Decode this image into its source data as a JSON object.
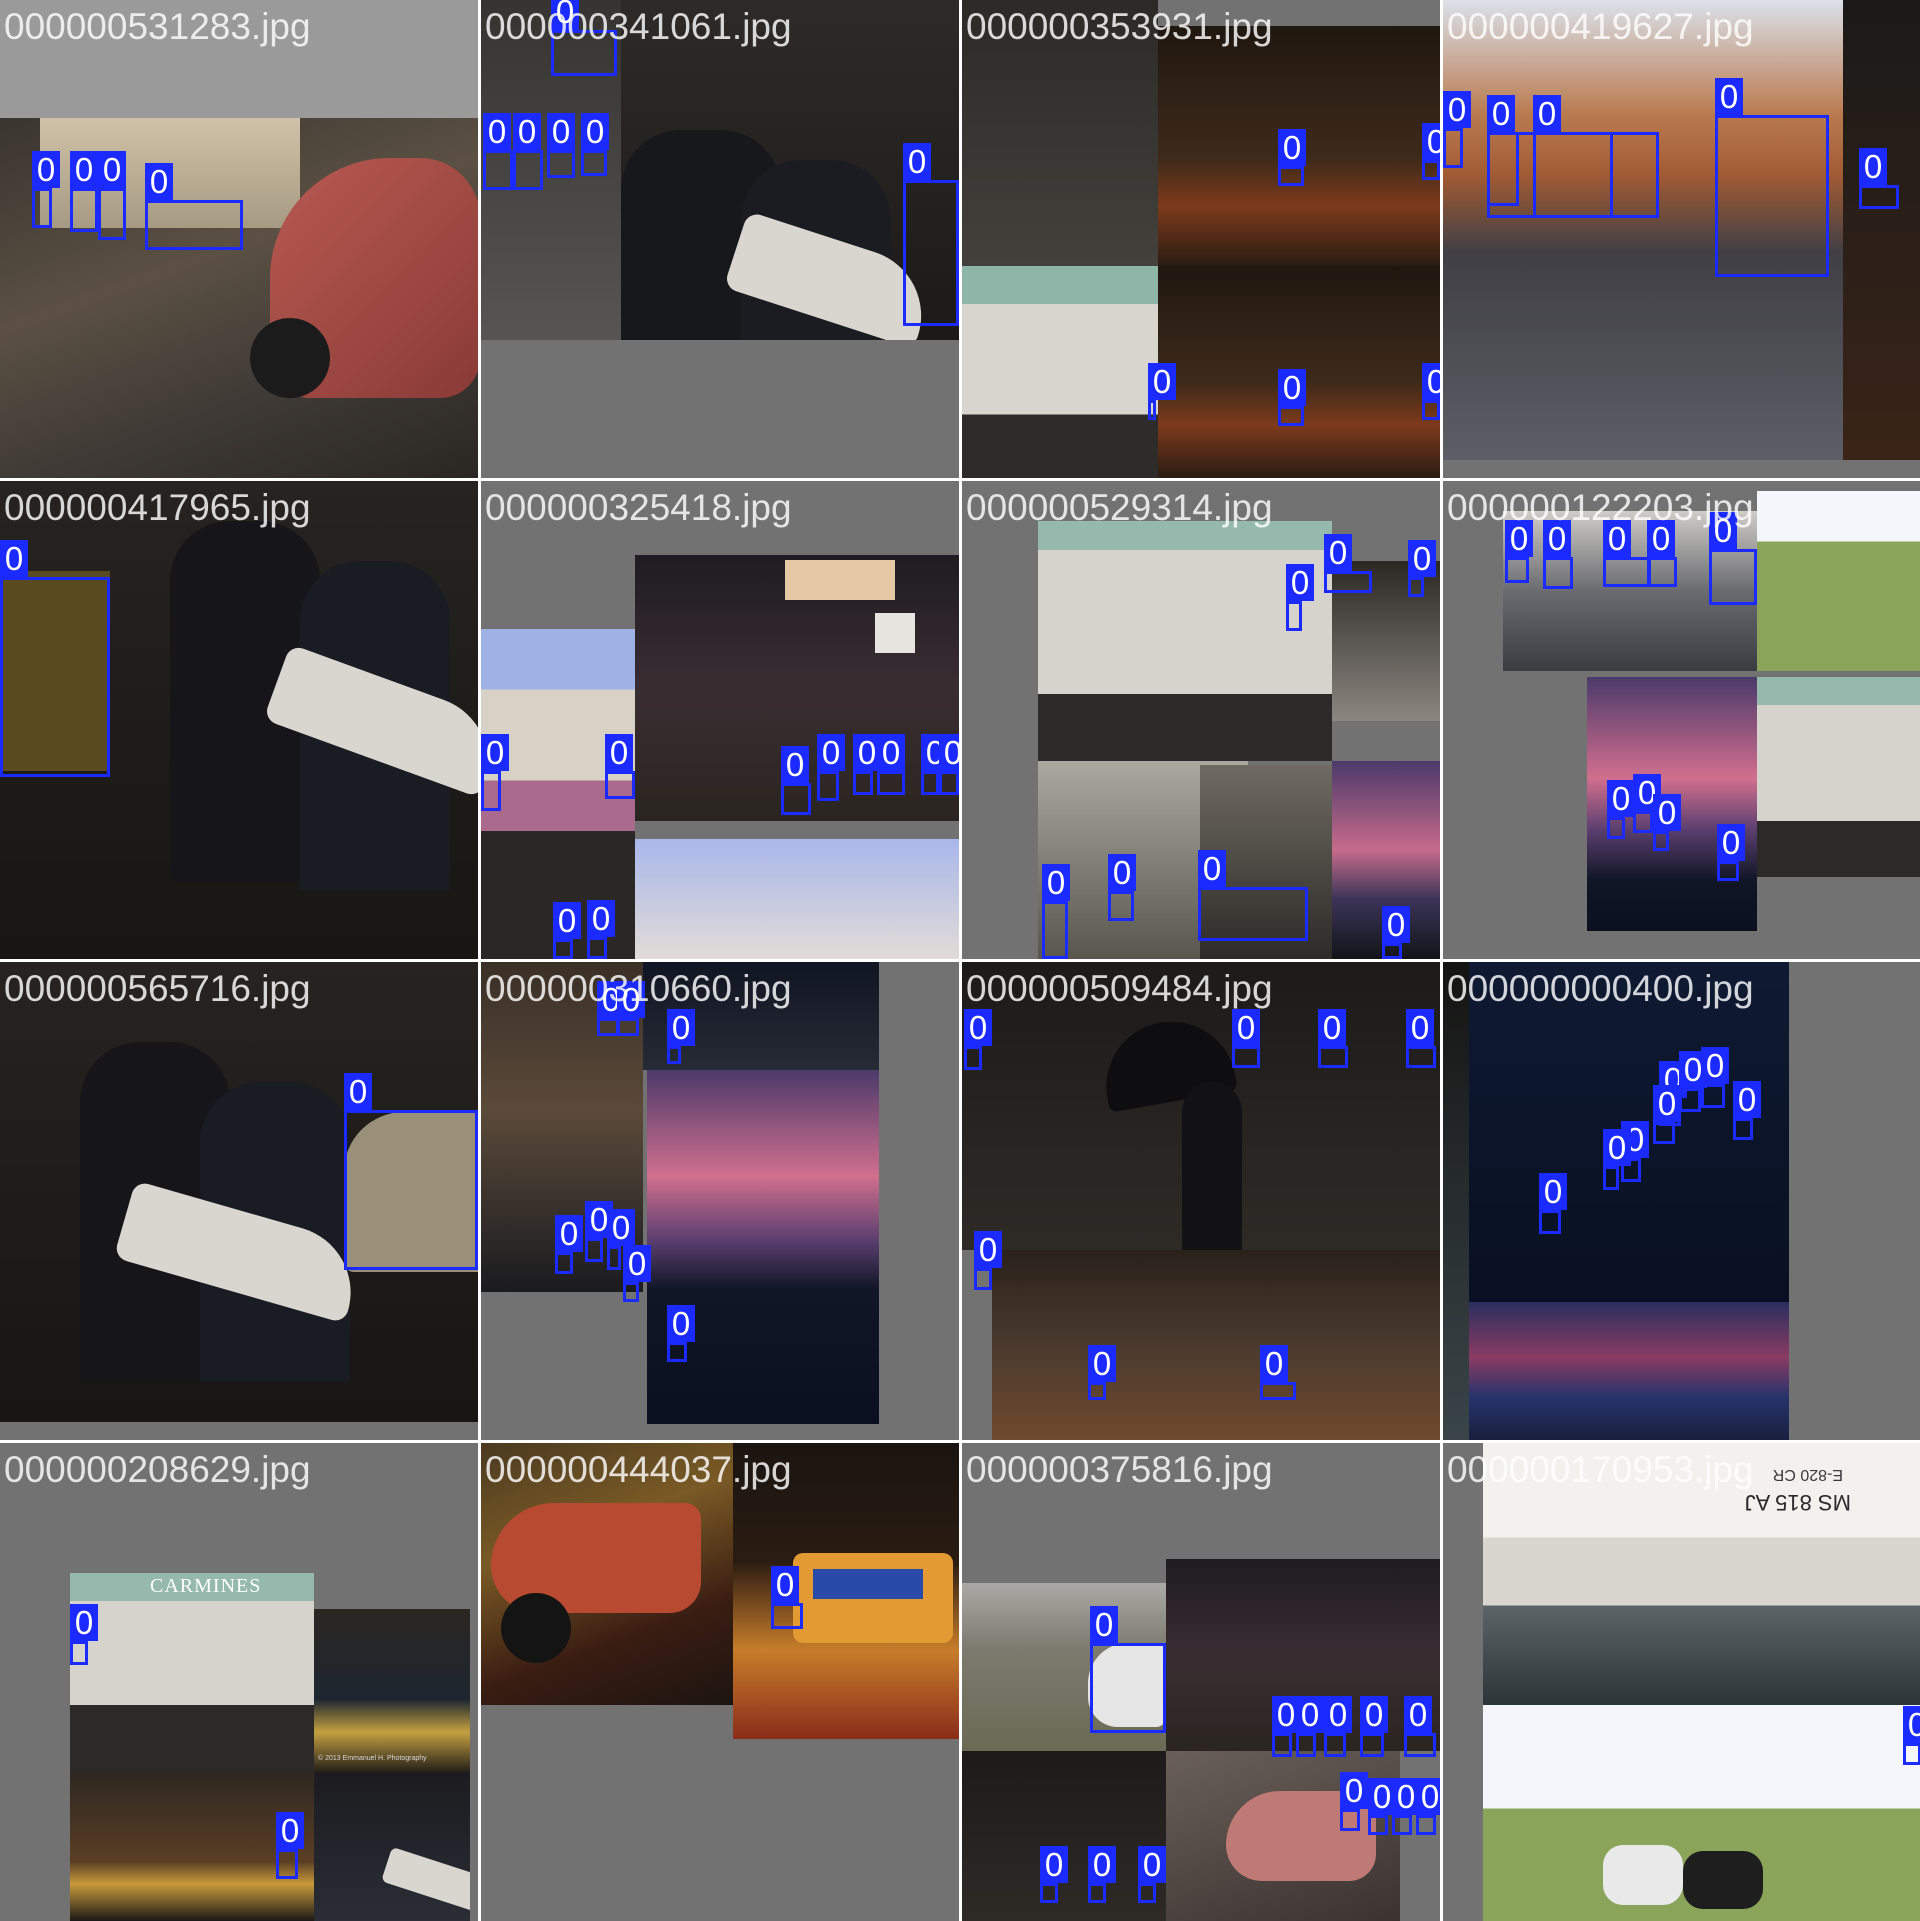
{
  "box_color": "#1b2bff",
  "tiles": [
    {
      "label": "000000531283.jpg",
      "box_tags": [
        "0",
        "0",
        "0",
        "0",
        "0",
        "0"
      ]
    },
    {
      "label": "000000341061.jpg",
      "box_tags": [
        "0",
        "0",
        "0",
        "0",
        "0",
        "0",
        "0",
        "0",
        "0",
        "0"
      ]
    },
    {
      "label": "000000353931.jpg",
      "box_tags": [
        "0",
        "0",
        "0",
        "0",
        "0",
        "0"
      ]
    },
    {
      "label": "000000419627.jpg",
      "box_tags": [
        "0",
        "0",
        "0",
        "0",
        "0",
        "0"
      ]
    },
    {
      "label": "000000417965.jpg",
      "box_tags": [
        "0"
      ]
    },
    {
      "label": "000000325418.jpg",
      "box_tags": [
        "0",
        "0",
        "0",
        "0",
        "0",
        "0",
        "0",
        "0",
        "0",
        "0",
        "0",
        "0",
        "0"
      ]
    },
    {
      "label": "000000529314.jpg",
      "box_tags": [
        "0",
        "0",
        "0",
        "0",
        "0",
        "0",
        "0",
        "0",
        "0"
      ]
    },
    {
      "label": "000000122203.jpg",
      "box_tags": [
        "0",
        "0",
        "0",
        "0",
        "0",
        "0",
        "0",
        "0",
        "0",
        "0",
        "0",
        "0",
        "0"
      ]
    },
    {
      "label": "000000565716.jpg",
      "box_tags": [
        "0"
      ]
    },
    {
      "label": "000000310660.jpg",
      "box_tags": [
        "0",
        "0",
        "0",
        "0",
        "0",
        "0",
        "0",
        "0",
        "0"
      ]
    },
    {
      "label": "000000509484.jpg",
      "box_tags": [
        "0",
        "0",
        "0",
        "0",
        "0",
        "0",
        "0",
        "0"
      ]
    },
    {
      "label": "000000000400.jpg",
      "box_tags": [
        "0",
        "0",
        "0",
        "0",
        "0",
        "0",
        "0",
        "0",
        "0"
      ]
    },
    {
      "label": "000000208629.jpg",
      "box_tags": [
        "0",
        "0"
      ]
    },
    {
      "label": "000000444037.jpg",
      "box_tags": [
        "0"
      ]
    },
    {
      "label": "000000375816.jpg",
      "box_tags": [
        "0",
        "0",
        "0",
        "0",
        "0",
        "0",
        "0",
        "0",
        "0",
        "0",
        "0",
        "0",
        "0",
        "0"
      ]
    },
    {
      "label": "000000170953.jpg",
      "box_tags": [
        "0"
      ]
    }
  ],
  "photo_text": {
    "storefront_sign": "CARMINES",
    "bus_credit": "© 2013 Emmanuel H. Photography",
    "boat_registration": "MS 815 AJ",
    "boat_sign": "E-820 CR"
  }
}
